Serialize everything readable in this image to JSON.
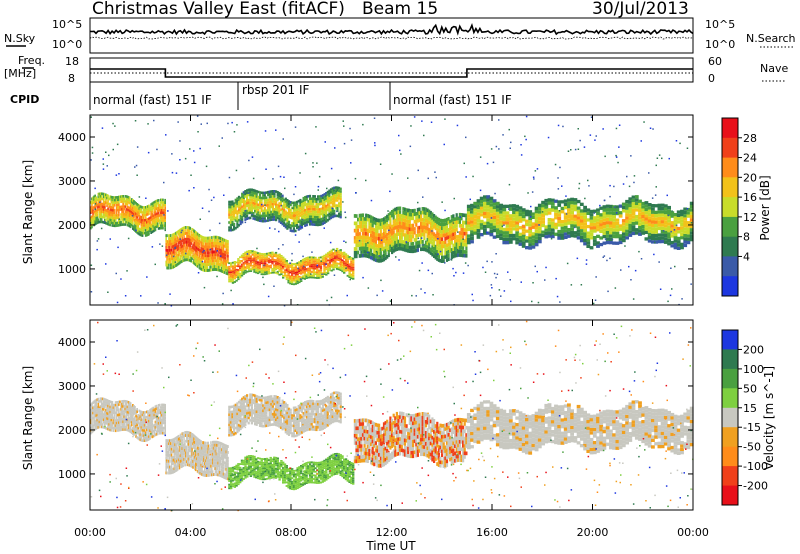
{
  "header": {
    "title": "Christmas Valley East (fitACF)",
    "beam": "Beam 15",
    "date": "30/Jul/2013"
  },
  "noise_panel": {
    "left_label": "N.Sky",
    "right_label": "N.Search",
    "left_ticks": [
      "10^5",
      "10^0"
    ],
    "right_ticks": [
      "10^5",
      "10^0"
    ]
  },
  "freq_panel": {
    "left_label_line1": "Freq.",
    "left_label_line2": "[MHz]",
    "right_label": "Nave",
    "left_ticks": [
      "18",
      "8"
    ],
    "right_ticks": [
      "60",
      "0"
    ]
  },
  "cpid": {
    "label": "CPID",
    "segments": [
      {
        "name": "normal (fast) 151 IF",
        "start_h": 0,
        "end_h": 6
      },
      {
        "name": "rbsp 201 IF",
        "start_h": 6,
        "end_h": 12
      },
      {
        "name": "normal (fast) 151 IF",
        "start_h": 12,
        "end_h": 24
      }
    ]
  },
  "power_panel": {
    "ylabel": "Slant Range [km]",
    "cbar_label": "Power [dB]",
    "cbar_ticks": [
      "28",
      "24",
      "20",
      "16",
      "12",
      "8",
      "4"
    ],
    "cbar_colors": [
      "#e8101a",
      "#f0401a",
      "#ff8c1a",
      "#f2c21a",
      "#c8dc2a",
      "#4aa040",
      "#2f7a50",
      "#3a5aa8",
      "#1d37e0"
    ]
  },
  "velocity_panel": {
    "ylabel": "Slant Range [km]",
    "cbar_label": "Velocity [m s^-1]",
    "cbar_ticks": [
      "200",
      "100",
      "50",
      "15",
      "-15",
      "-50",
      "-100",
      "-200"
    ],
    "cbar_colors": [
      "#1d37e0",
      "#2f7a50",
      "#4aa040",
      "#7ed040",
      "#c8c8c0",
      "#f0a020",
      "#ff8c1a",
      "#f0401a",
      "#e8101a"
    ]
  },
  "axes": {
    "xlabel": "Time UT",
    "xticks": [
      "00:00",
      "04:00",
      "08:00",
      "12:00",
      "16:00",
      "20:00",
      "00:00"
    ],
    "yticks": [
      "1000",
      "2000",
      "3000",
      "4000"
    ]
  },
  "chart_data": {
    "type": "heatmap",
    "title": "Christmas Valley East (fitACF)",
    "xlabel": "Time UT",
    "ylabel": "Slant Range [km]",
    "xlim_hours": [
      0,
      24
    ],
    "ylim_km": [
      180,
      4500
    ],
    "frequency_mhz": [
      {
        "start_h": 0,
        "end_h": 3,
        "value": 14.5
      },
      {
        "start_h": 3,
        "end_h": 15,
        "value": 10.5
      },
      {
        "start_h": 15,
        "end_h": 24,
        "value": 14.5
      }
    ],
    "power_db_range": [
      0,
      30
    ],
    "velocity_range": [
      -200,
      200
    ],
    "power_bands": [
      {
        "start_h": 0.0,
        "end_h": 3.0,
        "range_km": [
          1900,
          2600
        ],
        "power_db": 24
      },
      {
        "start_h": 3.0,
        "end_h": 5.5,
        "range_km": [
          1000,
          1800
        ],
        "power_db": 26
      },
      {
        "start_h": 5.5,
        "end_h": 10.0,
        "range_km": [
          2000,
          2700
        ],
        "power_db": 20
      },
      {
        "start_h": 5.5,
        "end_h": 10.5,
        "range_km": [
          800,
          1300
        ],
        "power_db": 26
      },
      {
        "start_h": 10.5,
        "end_h": 15.0,
        "range_km": [
          1300,
          2300
        ],
        "power_db": 22
      },
      {
        "start_h": 15.0,
        "end_h": 24.0,
        "range_km": [
          1600,
          2500
        ],
        "power_db": 20
      }
    ]
  }
}
